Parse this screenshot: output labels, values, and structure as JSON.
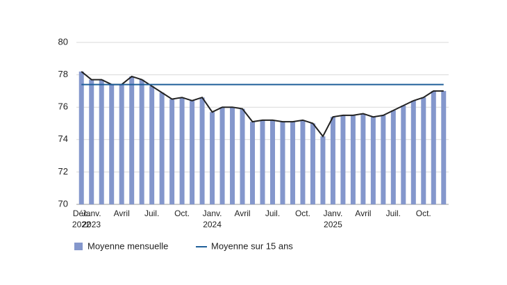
{
  "chart_data": {
    "type": "bar",
    "categories": [
      "Déc. 2022",
      "Janv. 2023",
      null,
      null,
      "Avril",
      null,
      null,
      "Juil.",
      null,
      null,
      "Oct.",
      null,
      null,
      "Janv. 2024",
      null,
      null,
      "Avril",
      null,
      null,
      "Juil.",
      null,
      null,
      "Oct.",
      null,
      null,
      "Janv. 2025",
      null,
      null,
      "Avril",
      null,
      null,
      "Juil.",
      null,
      null,
      "Oct.",
      null,
      null
    ],
    "series": [
      {
        "name": "Moyenne mensuelle",
        "color": "#8497cc",
        "line_color": "#222222",
        "values": [
          78.2,
          77.7,
          77.7,
          77.4,
          77.4,
          77.9,
          77.7,
          77.3,
          76.9,
          76.5,
          76.6,
          76.4,
          76.6,
          75.7,
          76.0,
          76.0,
          75.9,
          75.1,
          75.2,
          75.2,
          75.1,
          75.1,
          75.2,
          75.0,
          74.2,
          75.4,
          75.5,
          75.5,
          75.6,
          75.4,
          75.5,
          75.8,
          76.1,
          76.4,
          76.6,
          77.0,
          77.0
        ]
      },
      {
        "name": "Moyenne sur 15 ans",
        "color": "#1f5f99",
        "value": 77.4
      }
    ],
    "ylim": [
      70,
      80
    ],
    "yticks": [
      70,
      72,
      74,
      76,
      78,
      80
    ],
    "grid": true
  }
}
